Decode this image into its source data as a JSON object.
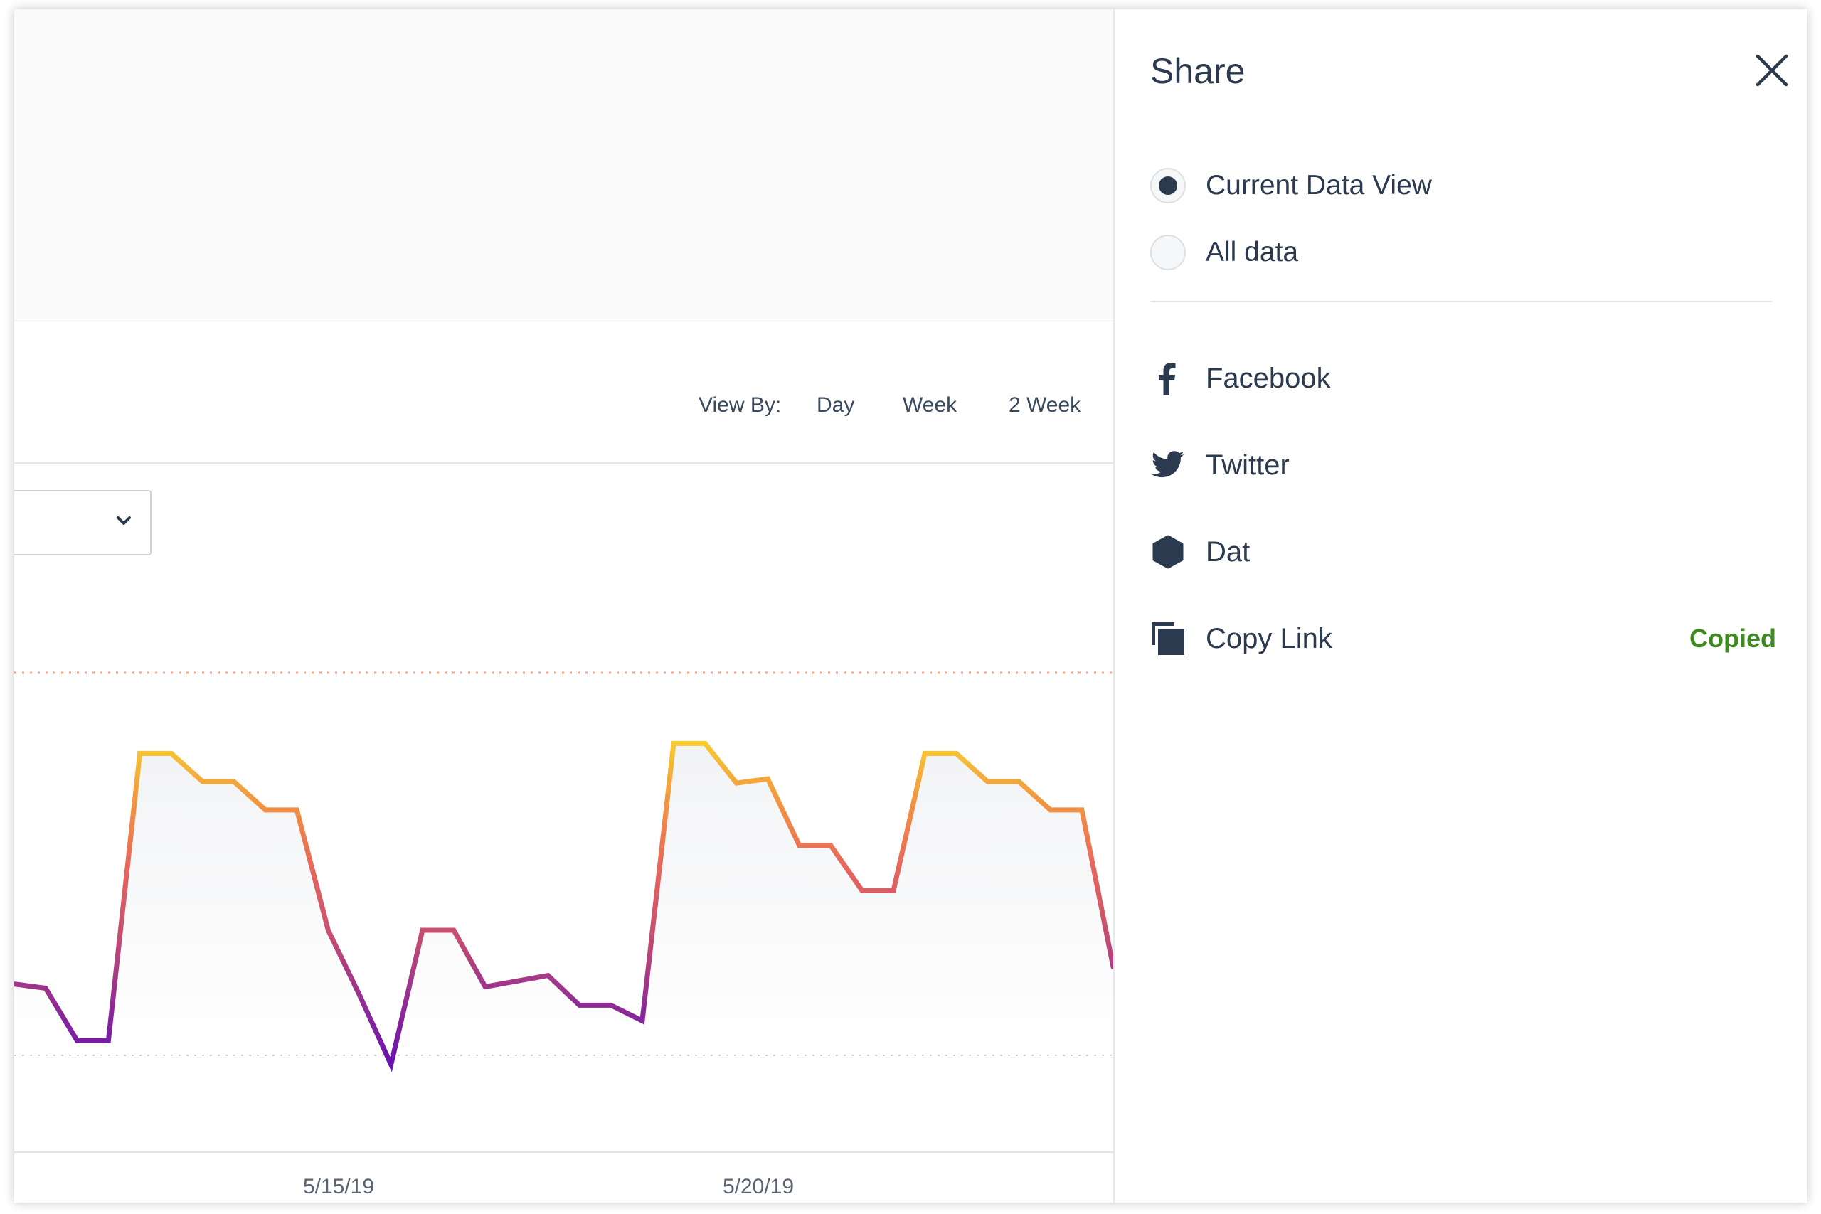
{
  "view_by": {
    "label": "View By:",
    "options": [
      "Day",
      "Week",
      "2 Week"
    ]
  },
  "chart_data": {
    "type": "line",
    "x_tick_labels": [
      "5/15/19",
      "5/20/19"
    ],
    "series": [
      {
        "values": [
          0.5,
          0.47,
          0.1,
          0.1,
          2.13,
          2.13,
          1.93,
          1.93,
          1.73,
          1.73,
          0.88,
          0.42,
          -0.07,
          0.88,
          0.88,
          0.48,
          0.52,
          0.56,
          0.35,
          0.35,
          0.24,
          2.2,
          2.2,
          1.92,
          1.95,
          1.48,
          1.48,
          1.16,
          1.16,
          2.13,
          2.13,
          1.93,
          1.93,
          1.73,
          1.73,
          0.62
        ]
      }
    ],
    "reference_lines": [
      2.7,
      0
    ],
    "grid": false
  },
  "share": {
    "title": "Share",
    "radio_options": [
      {
        "label": "Current Data View",
        "selected": true
      },
      {
        "label": "All data",
        "selected": false
      }
    ],
    "items": [
      {
        "label": "Facebook",
        "icon": "facebook-icon"
      },
      {
        "label": "Twitter",
        "icon": "twitter-icon"
      },
      {
        "label": "Dat",
        "icon": "dat-hexagon-icon"
      },
      {
        "label": "Copy Link",
        "icon": "copy-icon"
      }
    ],
    "copied_label": "Copied"
  },
  "colors": {
    "text": "#2b3a4e",
    "copied": "#3f8a1f",
    "line_low": "#6a14b0",
    "line_mid": "#e35f6a",
    "line_high": "#f7cd2e",
    "upper_ref": "#f0a08a",
    "lower_ref": "#b5bcc6"
  }
}
